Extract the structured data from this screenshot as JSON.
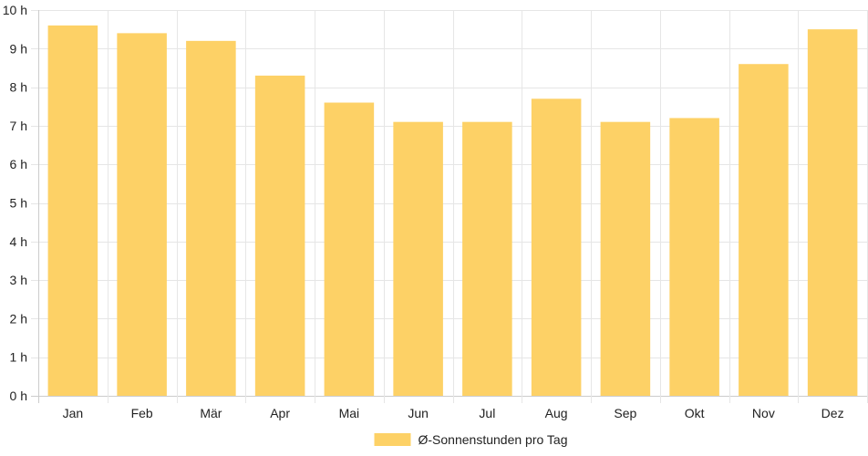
{
  "chart_data": {
    "type": "bar",
    "categories": [
      "Jan",
      "Feb",
      "Mär",
      "Apr",
      "Mai",
      "Jun",
      "Jul",
      "Aug",
      "Sep",
      "Okt",
      "Nov",
      "Dez"
    ],
    "series": [
      {
        "name": "Ø-Sonnenstunden pro Tag",
        "values": [
          9.6,
          9.4,
          9.2,
          8.3,
          7.6,
          7.1,
          7.1,
          7.7,
          7.1,
          7.2,
          8.6,
          9.5
        ],
        "color": "#fdd166"
      }
    ],
    "y_ticks": [
      "0 h",
      "1 h",
      "2 h",
      "3 h",
      "4 h",
      "5 h",
      "6 h",
      "7 h",
      "8 h",
      "9 h",
      "10 h"
    ],
    "ylim": [
      0,
      10
    ],
    "y_unit": "h",
    "grid": true,
    "legend_position": "bottom",
    "colors": {
      "bar": "#fdd166",
      "grid": "#e6e6e6",
      "axis": "#cccccc",
      "text": "#222222"
    }
  }
}
